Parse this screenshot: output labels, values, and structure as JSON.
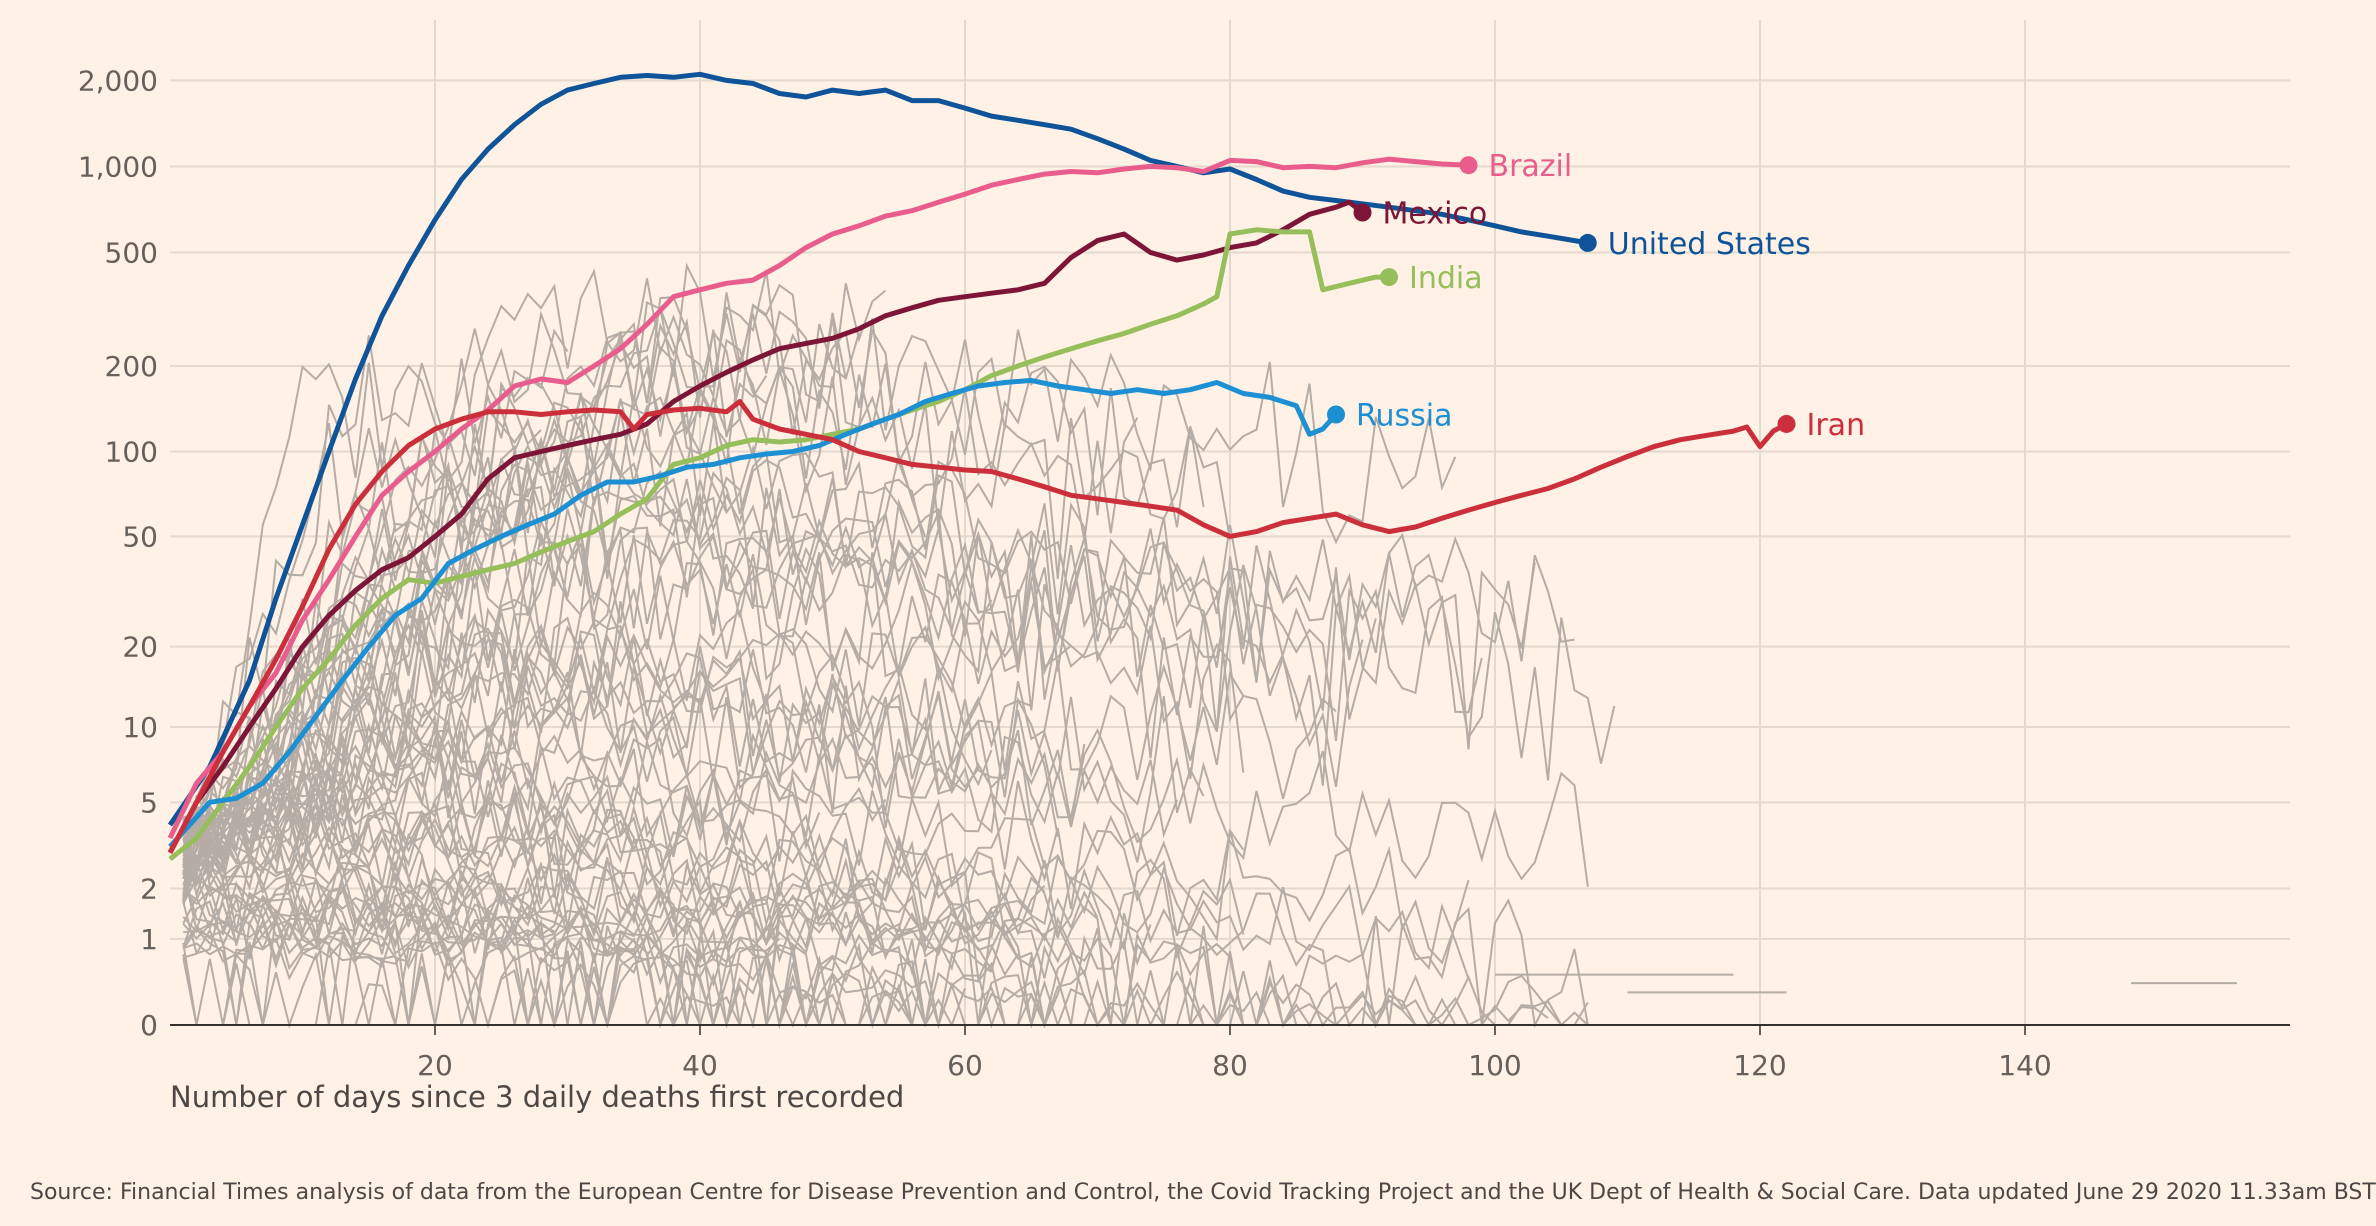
{
  "source": "Source: Financial Times analysis of data from the European Centre for Disease Prevention and Control, the Covid Tracking Project and the UK Dept of Health & Social Care. Data updated June 29 2020 11.33am BST",
  "chart_data": {
    "type": "line",
    "title": "",
    "xlabel": "Number of days since 3 daily deaths first recorded",
    "ylabel": "",
    "yscale": "log",
    "xlim": [
      0,
      160
    ],
    "ylim": [
      0,
      2000
    ],
    "x_ticks": [
      20,
      40,
      60,
      80,
      100,
      120,
      140
    ],
    "y_ticks": [
      {
        "value": 0,
        "label": "0"
      },
      {
        "value": 1,
        "label": "1"
      },
      {
        "value": 2,
        "label": "2"
      },
      {
        "value": 5,
        "label": "5"
      },
      {
        "value": 10,
        "label": "10"
      },
      {
        "value": 20,
        "label": "20"
      },
      {
        "value": 50,
        "label": "50"
      },
      {
        "value": 100,
        "label": "100"
      },
      {
        "value": 200,
        "label": "200"
      },
      {
        "value": 500,
        "label": "500"
      },
      {
        "value": 1000,
        "label": "1,000"
      },
      {
        "value": 2000,
        "label": "2,000"
      }
    ],
    "grid": true,
    "colors": {
      "background": "#FFF1E5",
      "context": "#B5ACA5"
    },
    "series": [
      {
        "name": "United States",
        "color": "#0F5499",
        "points": [
          [
            0,
            4
          ],
          [
            3,
            7
          ],
          [
            6,
            15
          ],
          [
            8,
            30
          ],
          [
            10,
            55
          ],
          [
            12,
            100
          ],
          [
            14,
            180
          ],
          [
            16,
            300
          ],
          [
            18,
            450
          ],
          [
            20,
            650
          ],
          [
            22,
            900
          ],
          [
            24,
            1150
          ],
          [
            26,
            1400
          ],
          [
            28,
            1650
          ],
          [
            30,
            1850
          ],
          [
            32,
            1950
          ],
          [
            34,
            2050
          ],
          [
            36,
            2080
          ],
          [
            38,
            2050
          ],
          [
            40,
            2100
          ],
          [
            42,
            2000
          ],
          [
            44,
            1950
          ],
          [
            46,
            1800
          ],
          [
            48,
            1750
          ],
          [
            50,
            1850
          ],
          [
            52,
            1800
          ],
          [
            54,
            1850
          ],
          [
            56,
            1700
          ],
          [
            58,
            1700
          ],
          [
            60,
            1600
          ],
          [
            62,
            1500
          ],
          [
            64,
            1450
          ],
          [
            66,
            1400
          ],
          [
            68,
            1350
          ],
          [
            70,
            1250
          ],
          [
            72,
            1150
          ],
          [
            74,
            1050
          ],
          [
            76,
            1000
          ],
          [
            78,
            950
          ],
          [
            80,
            980
          ],
          [
            82,
            900
          ],
          [
            84,
            820
          ],
          [
            86,
            780
          ],
          [
            88,
            760
          ],
          [
            90,
            740
          ],
          [
            92,
            720
          ],
          [
            94,
            700
          ],
          [
            96,
            680
          ],
          [
            98,
            650
          ],
          [
            100,
            620
          ],
          [
            102,
            590
          ],
          [
            104,
            570
          ],
          [
            106,
            550
          ],
          [
            107,
            540
          ]
        ]
      },
      {
        "name": "Brazil",
        "color": "#E95D8C",
        "points": [
          [
            0,
            3.5
          ],
          [
            2,
            6
          ],
          [
            4,
            8
          ],
          [
            6,
            12
          ],
          [
            8,
            16
          ],
          [
            10,
            25
          ],
          [
            12,
            35
          ],
          [
            14,
            50
          ],
          [
            16,
            70
          ],
          [
            18,
            85
          ],
          [
            20,
            100
          ],
          [
            22,
            120
          ],
          [
            24,
            140
          ],
          [
            26,
            170
          ],
          [
            28,
            180
          ],
          [
            30,
            175
          ],
          [
            32,
            200
          ],
          [
            34,
            230
          ],
          [
            36,
            280
          ],
          [
            38,
            350
          ],
          [
            40,
            370
          ],
          [
            42,
            390
          ],
          [
            44,
            400
          ],
          [
            46,
            450
          ],
          [
            48,
            520
          ],
          [
            50,
            580
          ],
          [
            52,
            620
          ],
          [
            54,
            670
          ],
          [
            56,
            700
          ],
          [
            58,
            750
          ],
          [
            60,
            800
          ],
          [
            62,
            860
          ],
          [
            64,
            900
          ],
          [
            66,
            940
          ],
          [
            68,
            960
          ],
          [
            70,
            950
          ],
          [
            72,
            980
          ],
          [
            74,
            1000
          ],
          [
            76,
            990
          ],
          [
            78,
            960
          ],
          [
            80,
            1050
          ],
          [
            82,
            1040
          ],
          [
            84,
            990
          ],
          [
            86,
            1000
          ],
          [
            88,
            990
          ],
          [
            90,
            1030
          ],
          [
            92,
            1060
          ],
          [
            94,
            1040
          ],
          [
            96,
            1020
          ],
          [
            98,
            1010
          ]
        ]
      },
      {
        "name": "Mexico",
        "color": "#7D1537",
        "points": [
          [
            0,
            3
          ],
          [
            2,
            5
          ],
          [
            4,
            7
          ],
          [
            6,
            10
          ],
          [
            8,
            14
          ],
          [
            10,
            20
          ],
          [
            12,
            26
          ],
          [
            14,
            32
          ],
          [
            16,
            38
          ],
          [
            18,
            42
          ],
          [
            20,
            50
          ],
          [
            22,
            60
          ],
          [
            24,
            80
          ],
          [
            26,
            95
          ],
          [
            28,
            100
          ],
          [
            30,
            105
          ],
          [
            32,
            110
          ],
          [
            34,
            115
          ],
          [
            36,
            125
          ],
          [
            38,
            150
          ],
          [
            40,
            170
          ],
          [
            42,
            190
          ],
          [
            44,
            210
          ],
          [
            46,
            230
          ],
          [
            48,
            240
          ],
          [
            50,
            250
          ],
          [
            52,
            270
          ],
          [
            54,
            300
          ],
          [
            56,
            320
          ],
          [
            58,
            340
          ],
          [
            60,
            350
          ],
          [
            62,
            360
          ],
          [
            64,
            370
          ],
          [
            66,
            390
          ],
          [
            68,
            480
          ],
          [
            70,
            550
          ],
          [
            72,
            580
          ],
          [
            74,
            500
          ],
          [
            76,
            470
          ],
          [
            78,
            490
          ],
          [
            80,
            520
          ],
          [
            82,
            540
          ],
          [
            84,
            600
          ],
          [
            86,
            680
          ],
          [
            88,
            720
          ],
          [
            89,
            750
          ],
          [
            90,
            690
          ]
        ]
      },
      {
        "name": "India",
        "color": "#96BE5A",
        "points": [
          [
            0,
            2.8
          ],
          [
            2,
            3.5
          ],
          [
            4,
            5
          ],
          [
            6,
            7
          ],
          [
            8,
            10
          ],
          [
            10,
            14
          ],
          [
            12,
            18
          ],
          [
            14,
            24
          ],
          [
            16,
            30
          ],
          [
            18,
            35
          ],
          [
            20,
            34
          ],
          [
            22,
            36
          ],
          [
            24,
            38
          ],
          [
            26,
            40
          ],
          [
            28,
            44
          ],
          [
            30,
            48
          ],
          [
            32,
            52
          ],
          [
            34,
            60
          ],
          [
            36,
            68
          ],
          [
            38,
            90
          ],
          [
            40,
            95
          ],
          [
            42,
            105
          ],
          [
            44,
            110
          ],
          [
            46,
            108
          ],
          [
            48,
            110
          ],
          [
            50,
            115
          ],
          [
            52,
            120
          ],
          [
            54,
            130
          ],
          [
            56,
            140
          ],
          [
            58,
            150
          ],
          [
            60,
            165
          ],
          [
            62,
            185
          ],
          [
            64,
            200
          ],
          [
            66,
            215
          ],
          [
            68,
            230
          ],
          [
            70,
            245
          ],
          [
            72,
            260
          ],
          [
            74,
            280
          ],
          [
            76,
            300
          ],
          [
            78,
            330
          ],
          [
            79,
            350
          ],
          [
            80,
            580
          ],
          [
            82,
            600
          ],
          [
            84,
            590
          ],
          [
            86,
            590
          ],
          [
            87,
            370
          ],
          [
            89,
            390
          ],
          [
            91,
            410
          ],
          [
            92,
            410
          ]
        ]
      },
      {
        "name": "Russia",
        "color": "#1D8FD3",
        "points": [
          [
            0,
            3.2
          ],
          [
            3,
            5
          ],
          [
            5,
            5.2
          ],
          [
            7,
            6
          ],
          [
            9,
            8
          ],
          [
            11,
            11
          ],
          [
            13,
            15
          ],
          [
            15,
            20
          ],
          [
            17,
            26
          ],
          [
            19,
            30
          ],
          [
            21,
            40
          ],
          [
            23,
            45
          ],
          [
            25,
            50
          ],
          [
            27,
            55
          ],
          [
            29,
            60
          ],
          [
            31,
            70
          ],
          [
            33,
            78
          ],
          [
            35,
            78
          ],
          [
            37,
            82
          ],
          [
            39,
            88
          ],
          [
            41,
            90
          ],
          [
            43,
            95
          ],
          [
            45,
            98
          ],
          [
            47,
            100
          ],
          [
            49,
            105
          ],
          [
            51,
            115
          ],
          [
            53,
            125
          ],
          [
            55,
            135
          ],
          [
            57,
            150
          ],
          [
            59,
            160
          ],
          [
            61,
            170
          ],
          [
            63,
            175
          ],
          [
            65,
            178
          ],
          [
            67,
            170
          ],
          [
            69,
            165
          ],
          [
            71,
            160
          ],
          [
            73,
            165
          ],
          [
            75,
            160
          ],
          [
            77,
            165
          ],
          [
            79,
            175
          ],
          [
            81,
            160
          ],
          [
            83,
            155
          ],
          [
            85,
            145
          ],
          [
            86,
            115
          ],
          [
            87,
            120
          ],
          [
            88,
            135
          ]
        ]
      },
      {
        "name": "Iran",
        "color": "#CC2F3C",
        "points": [
          [
            0,
            3
          ],
          [
            2,
            5
          ],
          [
            4,
            8
          ],
          [
            6,
            12
          ],
          [
            8,
            18
          ],
          [
            10,
            28
          ],
          [
            12,
            45
          ],
          [
            14,
            65
          ],
          [
            16,
            85
          ],
          [
            18,
            105
          ],
          [
            20,
            120
          ],
          [
            22,
            130
          ],
          [
            24,
            138
          ],
          [
            26,
            138
          ],
          [
            28,
            135
          ],
          [
            30,
            138
          ],
          [
            32,
            140
          ],
          [
            34,
            138
          ],
          [
            35,
            120
          ],
          [
            36,
            135
          ],
          [
            38,
            140
          ],
          [
            40,
            142
          ],
          [
            42,
            138
          ],
          [
            43,
            150
          ],
          [
            44,
            130
          ],
          [
            46,
            120
          ],
          [
            48,
            115
          ],
          [
            50,
            110
          ],
          [
            52,
            100
          ],
          [
            54,
            95
          ],
          [
            56,
            90
          ],
          [
            58,
            88
          ],
          [
            60,
            86
          ],
          [
            62,
            85
          ],
          [
            64,
            80
          ],
          [
            66,
            75
          ],
          [
            68,
            70
          ],
          [
            70,
            68
          ],
          [
            72,
            66
          ],
          [
            74,
            64
          ],
          [
            76,
            62
          ],
          [
            78,
            55
          ],
          [
            80,
            50
          ],
          [
            82,
            52
          ],
          [
            84,
            56
          ],
          [
            86,
            58
          ],
          [
            88,
            60
          ],
          [
            90,
            55
          ],
          [
            92,
            52
          ],
          [
            94,
            54
          ],
          [
            96,
            58
          ],
          [
            98,
            62
          ],
          [
            100,
            66
          ],
          [
            102,
            70
          ],
          [
            104,
            74
          ],
          [
            106,
            80
          ],
          [
            108,
            88
          ],
          [
            110,
            96
          ],
          [
            112,
            104
          ],
          [
            114,
            110
          ],
          [
            116,
            114
          ],
          [
            118,
            118
          ],
          [
            119,
            122
          ],
          [
            120,
            104
          ],
          [
            121,
            118
          ],
          [
            122,
            125
          ]
        ]
      }
    ]
  }
}
